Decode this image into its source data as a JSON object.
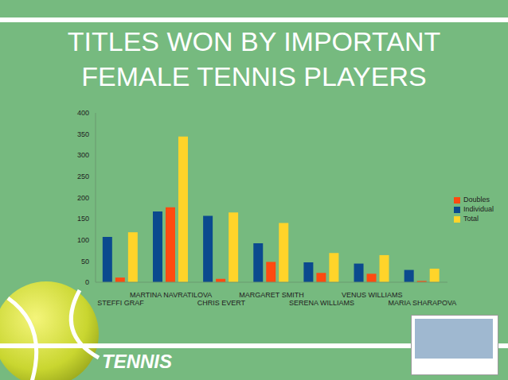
{
  "title": "TITLES WON BY IMPORTANT FEMALE TENNIS PLAYERS",
  "footer": "TENNIS",
  "chart_data": {
    "type": "bar",
    "categories": [
      "STEFFI GRAF",
      "MARTINA NAVRATILOVA",
      "CHRIS EVERT",
      "MARGARET SMITH",
      "SERENA WILLIAMS",
      "VENUS WILLIAMS",
      "MARIA SHARAPOVA"
    ],
    "series": [
      {
        "name": "Individual",
        "color": "#0b4a8e",
        "values": [
          107,
          167,
          157,
          92,
          47,
          44,
          29
        ]
      },
      {
        "name": "Doubles",
        "color": "#ff4a10",
        "values": [
          11,
          177,
          8,
          48,
          22,
          20,
          3
        ]
      },
      {
        "name": "Total",
        "color": "#ffd42a",
        "values": [
          118,
          344,
          165,
          140,
          69,
          64,
          32
        ]
      }
    ],
    "ylim": [
      0,
      400
    ],
    "yticks": [
      0,
      50,
      100,
      150,
      200,
      250,
      300,
      350,
      400
    ],
    "grid": false,
    "legend": "right"
  }
}
